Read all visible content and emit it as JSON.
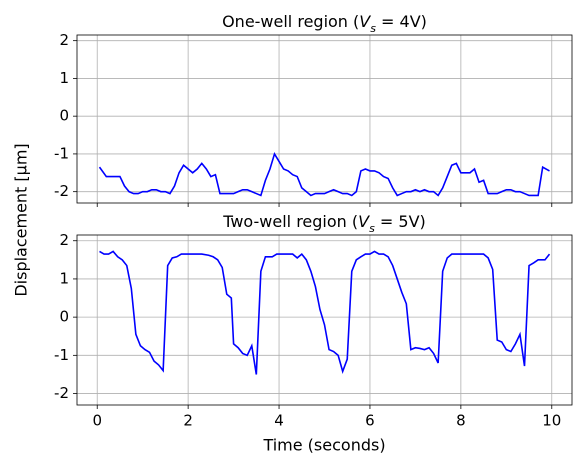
{
  "ylabel": "Displacement [µm]",
  "chart_data": [
    {
      "type": "line",
      "title": [
        "One-well region (",
        "V",
        "s",
        " = 4V)"
      ],
      "x": [
        0.05,
        0.2,
        0.5,
        0.6,
        0.7,
        0.8,
        0.9,
        1.0,
        1.1,
        1.2,
        1.3,
        1.4,
        1.5,
        1.6,
        1.7,
        1.8,
        1.9,
        2.0,
        2.1,
        2.2,
        2.3,
        2.4,
        2.5,
        2.6,
        2.7,
        3.0,
        3.1,
        3.2,
        3.3,
        3.4,
        3.5,
        3.6,
        3.7,
        3.8,
        3.9,
        4.0,
        4.1,
        4.2,
        4.3,
        4.4,
        4.5,
        4.6,
        4.7,
        4.8,
        4.9,
        5.0,
        5.1,
        5.2,
        5.3,
        5.4,
        5.5,
        5.6,
        5.7,
        5.8,
        5.9,
        6.0,
        6.1,
        6.2,
        6.3,
        6.4,
        6.5,
        6.6,
        6.7,
        6.8,
        6.9,
        7.0,
        7.1,
        7.2,
        7.3,
        7.4,
        7.5,
        7.6,
        7.7,
        7.8,
        7.9,
        8.0,
        8.1,
        8.2,
        8.3,
        8.4,
        8.5,
        8.6,
        8.7,
        8.8,
        8.9,
        9.0,
        9.1,
        9.2,
        9.3,
        9.4,
        9.5,
        9.6,
        9.7,
        9.8,
        9.95
      ],
      "series": [
        {
          "color": "#0000ff",
          "values": [
            -1.35,
            -1.6,
            -1.6,
            -1.85,
            -2.0,
            -2.05,
            -2.05,
            -2.0,
            -2.0,
            -1.95,
            -1.95,
            -2.0,
            -2.0,
            -2.05,
            -1.85,
            -1.5,
            -1.3,
            -1.4,
            -1.5,
            -1.4,
            -1.25,
            -1.4,
            -1.6,
            -1.55,
            -2.05,
            -2.05,
            -2.0,
            -1.95,
            -1.95,
            -2.0,
            -2.05,
            -2.1,
            -1.7,
            -1.4,
            -1.0,
            -1.2,
            -1.4,
            -1.45,
            -1.55,
            -1.6,
            -1.9,
            -2.0,
            -2.1,
            -2.05,
            -2.05,
            -2.05,
            -2.0,
            -1.95,
            -2.0,
            -2.05,
            -2.05,
            -2.1,
            -2.0,
            -1.45,
            -1.4,
            -1.45,
            -1.45,
            -1.5,
            -1.6,
            -1.65,
            -1.9,
            -2.1,
            -2.05,
            -2.0,
            -2.0,
            -1.95,
            -2.0,
            -1.95,
            -2.0,
            -2.0,
            -2.1,
            -1.9,
            -1.6,
            -1.3,
            -1.25,
            -1.5,
            -1.5,
            -1.5,
            -1.4,
            -1.75,
            -1.7,
            -2.05,
            -2.05,
            -2.05,
            -2.0,
            -1.95,
            -1.95,
            -2.0,
            -2.0,
            -2.05,
            -2.1,
            -2.1,
            -2.1,
            -1.35,
            -1.45
          ]
        }
      ],
      "xlim": [
        -0.445,
        10.445
      ],
      "ylim": [
        -2.3,
        2.15
      ],
      "xticks": [
        0,
        2,
        4,
        6,
        8,
        10
      ],
      "yticks": [
        -2,
        -1,
        0,
        1,
        2
      ],
      "grid": true
    },
    {
      "type": "line",
      "title": [
        "Two-well region (",
        "V",
        "s",
        " = 5V)"
      ],
      "xlabel": "Time (seconds)",
      "x": [
        0.05,
        0.15,
        0.25,
        0.35,
        0.45,
        0.55,
        0.65,
        0.75,
        0.85,
        0.95,
        1.05,
        1.15,
        1.25,
        1.35,
        1.45,
        1.55,
        1.65,
        1.75,
        1.85,
        2.0,
        2.3,
        2.45,
        2.55,
        2.65,
        2.75,
        2.85,
        2.95,
        3.0,
        3.1,
        3.2,
        3.3,
        3.4,
        3.5,
        3.6,
        3.7,
        3.85,
        3.95,
        4.3,
        4.4,
        4.5,
        4.6,
        4.7,
        4.8,
        4.9,
        5.0,
        5.1,
        5.2,
        5.3,
        5.4,
        5.5,
        5.6,
        5.7,
        5.8,
        5.9,
        6.0,
        6.1,
        6.2,
        6.3,
        6.4,
        6.5,
        6.6,
        6.7,
        6.8,
        6.9,
        7.0,
        7.1,
        7.2,
        7.3,
        7.4,
        7.5,
        7.6,
        7.7,
        7.8,
        8.5,
        8.6,
        8.7,
        8.8,
        8.9,
        9.0,
        9.1,
        9.2,
        9.3,
        9.4,
        9.5,
        9.6,
        9.7,
        9.85,
        9.95
      ],
      "series": [
        {
          "color": "#0000ff",
          "values": [
            1.72,
            1.65,
            1.65,
            1.72,
            1.58,
            1.5,
            1.35,
            0.75,
            -0.45,
            -0.75,
            -0.85,
            -0.92,
            -1.15,
            -1.25,
            -1.4,
            1.35,
            1.55,
            1.58,
            1.65,
            1.65,
            1.65,
            1.62,
            1.58,
            1.5,
            1.3,
            0.6,
            0.5,
            -0.7,
            -0.8,
            -0.95,
            -1.0,
            -0.75,
            -1.5,
            1.2,
            1.58,
            1.58,
            1.65,
            1.65,
            1.55,
            1.65,
            1.5,
            1.2,
            0.8,
            0.2,
            -0.2,
            -0.85,
            -0.9,
            -1.0,
            -1.42,
            -1.1,
            1.2,
            1.5,
            1.58,
            1.65,
            1.65,
            1.72,
            1.65,
            1.65,
            1.58,
            1.35,
            1.0,
            0.65,
            0.35,
            -0.85,
            -0.8,
            -0.82,
            -0.85,
            -0.8,
            -0.95,
            -1.2,
            1.2,
            1.55,
            1.65,
            1.65,
            1.55,
            1.25,
            -0.6,
            -0.65,
            -0.85,
            -0.9,
            -0.7,
            -0.45,
            -1.28,
            1.35,
            1.42,
            1.5,
            1.5,
            1.65
          ]
        }
      ],
      "xlim": [
        -0.445,
        10.445
      ],
      "ylim": [
        -2.3,
        2.15
      ],
      "xticks": [
        0,
        2,
        4,
        6,
        8,
        10
      ],
      "yticks": [
        -2,
        -1,
        0,
        1,
        2
      ],
      "grid": true
    }
  ]
}
